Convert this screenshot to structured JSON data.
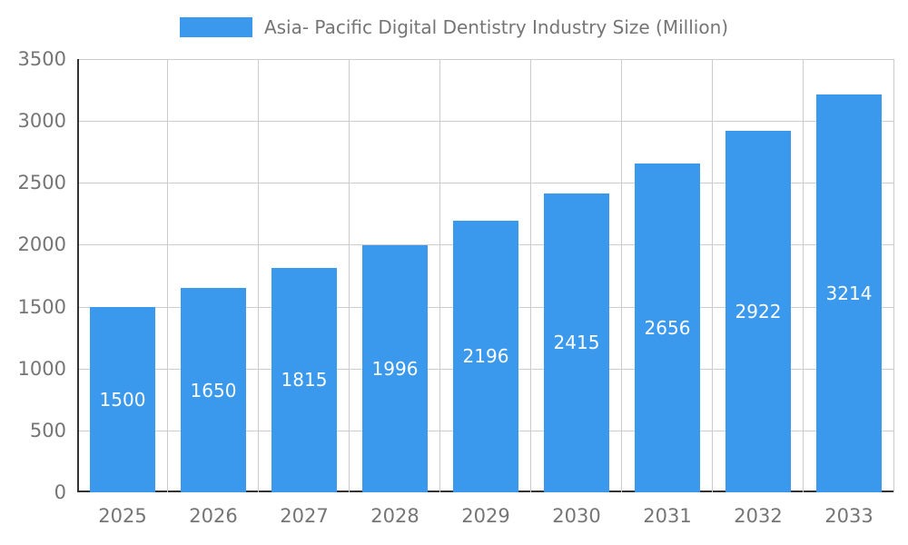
{
  "chart_data": {
    "type": "bar",
    "title": "Asia- Pacific Digital Dentistry Industry Size (Million)",
    "series_name": "Asia- Pacific Digital Dentistry Industry Size (Million)",
    "categories": [
      "2025",
      "2026",
      "2027",
      "2028",
      "2029",
      "2030",
      "2031",
      "2032",
      "2033"
    ],
    "values": [
      1500,
      1650,
      1815,
      1996,
      2196,
      2415,
      2656,
      2922,
      3214
    ],
    "xlabel": "",
    "ylabel": "",
    "ylim": [
      0,
      3500
    ],
    "yticks": [
      0,
      500,
      1000,
      1500,
      2000,
      2500,
      3000,
      3500
    ],
    "grid": true,
    "legend_position": "top-center",
    "bar_color": "#3A99EC",
    "bar_value_label_color": "#ffffff",
    "axis_text_color": "#757575",
    "gridline_color": "#cccccc",
    "baseline_color": "#333333",
    "background_color": "#ffffff"
  }
}
